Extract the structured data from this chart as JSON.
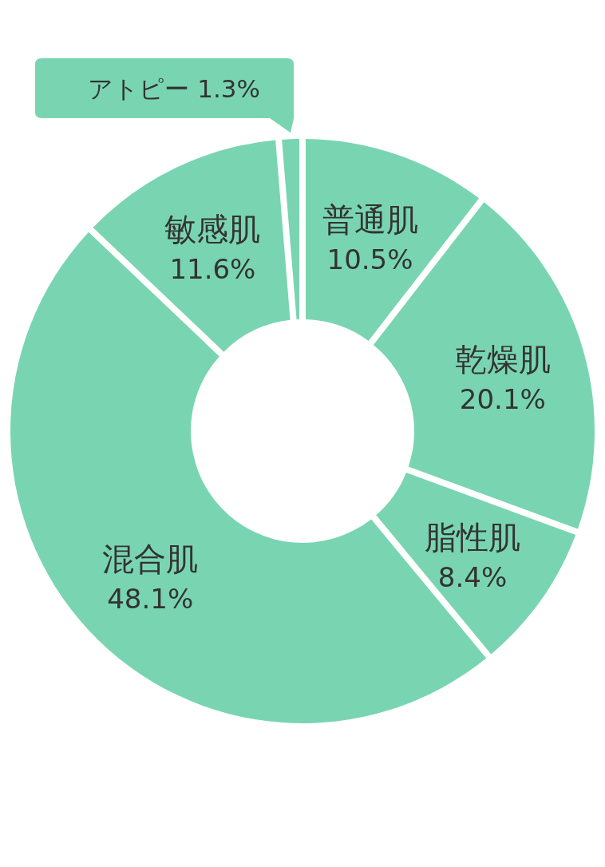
{
  "chart_data": {
    "type": "donut",
    "categories": [
      "普通肌",
      "乾燥肌",
      "脂性肌",
      "混合肌",
      "敏感肌",
      "アトピー"
    ],
    "values": [
      10.5,
      20.1,
      8.4,
      48.1,
      11.6,
      1.3
    ],
    "colors": [
      "#79d5b1",
      "#79d5b1",
      "#79d5b1",
      "#79d5b1",
      "#79d5b1",
      "#79d5b1"
    ],
    "value_labels": [
      "10.5%",
      "20.1%",
      "8.4%",
      "48.1%",
      "11.6%",
      "1.3%"
    ]
  }
}
